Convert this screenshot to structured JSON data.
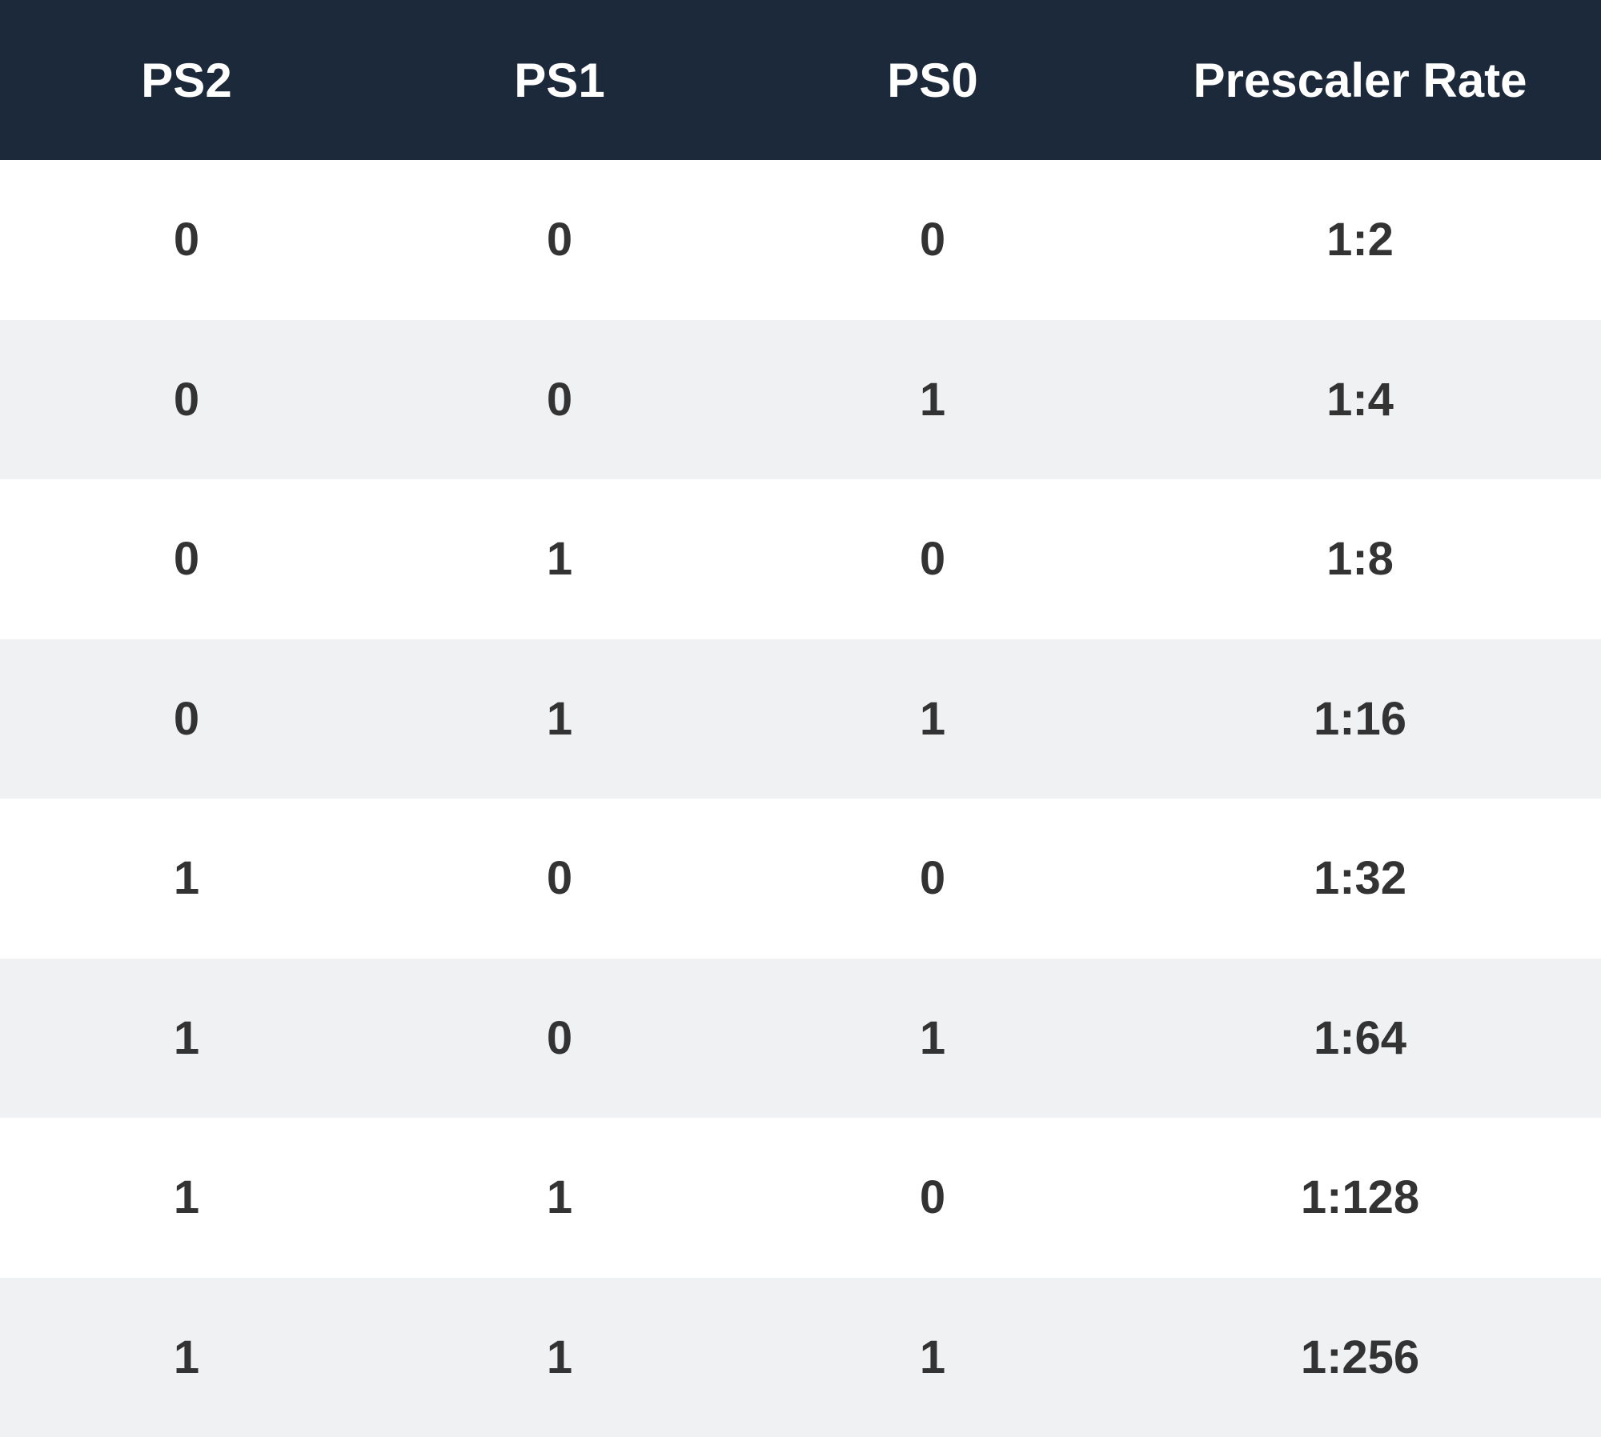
{
  "table": {
    "headers": [
      "PS2",
      "PS1",
      "PS0",
      "Prescaler Rate"
    ],
    "rows": [
      [
        "0",
        "0",
        "0",
        "1:2"
      ],
      [
        "0",
        "0",
        "1",
        "1:4"
      ],
      [
        "0",
        "1",
        "0",
        "1:8"
      ],
      [
        "0",
        "1",
        "1",
        "1:16"
      ],
      [
        "1",
        "0",
        "0",
        "1:32"
      ],
      [
        "1",
        "0",
        "1",
        "1:64"
      ],
      [
        "1",
        "1",
        "0",
        "1:128"
      ],
      [
        "1",
        "1",
        "1",
        "1:256"
      ]
    ]
  },
  "colors": {
    "header_background": "#1b293b",
    "header_text": "#ffffff",
    "row_odd": "#ffffff",
    "row_even": "#f0f1f3",
    "cell_text": "#333333"
  }
}
